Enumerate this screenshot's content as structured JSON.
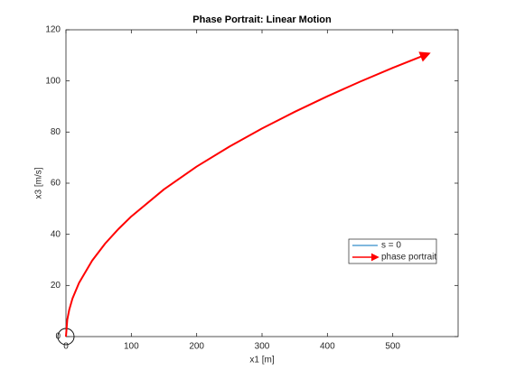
{
  "chart_data": {
    "type": "line",
    "title": "Phase Portrait: Linear Motion",
    "x_label": "x1 [m]",
    "y_label": "x3 [m/s]",
    "xlim": [
      0,
      600
    ],
    "xticks": [
      0,
      100,
      200,
      300,
      400,
      500
    ],
    "ylim": [
      0,
      120
    ],
    "yticks": [
      0,
      20,
      40,
      60,
      80,
      100,
      120
    ],
    "legend": "right",
    "series": [
      {
        "name": "s = 0",
        "color": "#0072bd",
        "x": [
          0
        ],
        "values": [
          0
        ]
      },
      {
        "name": "phase portrait",
        "color": "#ff0000",
        "x": [
          0,
          2,
          5,
          10,
          20,
          40,
          60,
          80,
          100,
          150,
          200,
          250,
          300,
          350,
          400,
          450,
          500,
          555
        ],
        "values": [
          0,
          6.6,
          10.5,
          14.9,
          21,
          29.7,
          36.4,
          42,
          47,
          57.6,
          66.5,
          74.3,
          81.4,
          87.9,
          94,
          99.7,
          105.1,
          110.7
        ]
      }
    ]
  }
}
